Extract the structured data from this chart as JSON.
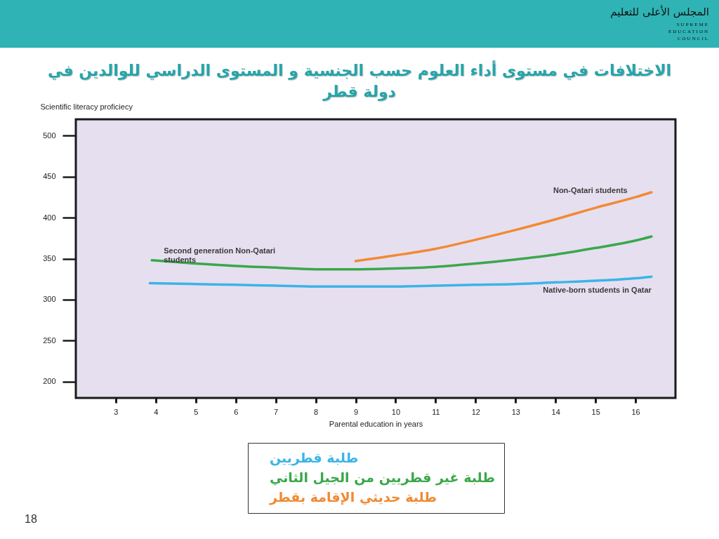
{
  "chart_data": {
    "type": "line",
    "title": "الاختلافات في مستوى أداء العلوم حسب الجنسية و المستوى الدراسي للوالدين في دولة قطر",
    "xlabel": "Parental education in years",
    "ylabel": "Scientific literacy proficiecy",
    "xlim": [
      2,
      17
    ],
    "ylim": [
      180,
      520
    ],
    "xticks": [
      3,
      4,
      5,
      6,
      7,
      8,
      9,
      10,
      11,
      12,
      13,
      14,
      15,
      16
    ],
    "yticks": [
      200,
      250,
      300,
      350,
      400,
      450,
      500
    ],
    "legend": "bottom",
    "line_style": "solid",
    "series": [
      {
        "name": "طلبة قطريين",
        "color": "#3cb4e5",
        "x": [
          3.85,
          5,
          6,
          7,
          8,
          9,
          10,
          11,
          12,
          13,
          14,
          15,
          16,
          16.4
        ],
        "values": [
          320,
          319,
          318,
          317,
          316,
          316,
          316,
          317,
          318,
          319,
          321,
          323,
          326,
          328
        ]
      },
      {
        "name": "طلبة غير قطريين من الجيل الثاني",
        "color": "#3aa84a",
        "x": [
          3.9,
          5,
          6,
          7,
          8,
          9,
          10,
          11,
          12,
          13,
          14,
          15,
          16,
          16.4
        ],
        "values": [
          348,
          344,
          341,
          339,
          337,
          337,
          338,
          340,
          344,
          349,
          355,
          363,
          372,
          377
        ]
      },
      {
        "name": "طلبة حديثي الإقامة بقطر",
        "color": "#f18a33",
        "x": [
          9,
          10,
          11,
          12,
          13,
          14,
          15,
          16,
          16.4
        ],
        "values": [
          347,
          354,
          362,
          373,
          385,
          398,
          412,
          425,
          431
        ]
      }
    ],
    "annotations": [
      "المجلس الأعلى للتعليم",
      "SUPREME EDUCATION COUNCIL",
      {
        "text": "Non-Qatari students",
        "x": 15.8,
        "y": 421
      },
      {
        "text": "Second generation Non-Qatari students",
        "x": 4.2,
        "y": 347
      },
      {
        "text": "Native-born students in Qatar",
        "x": 16.4,
        "y": 328
      },
      "18"
    ]
  }
}
